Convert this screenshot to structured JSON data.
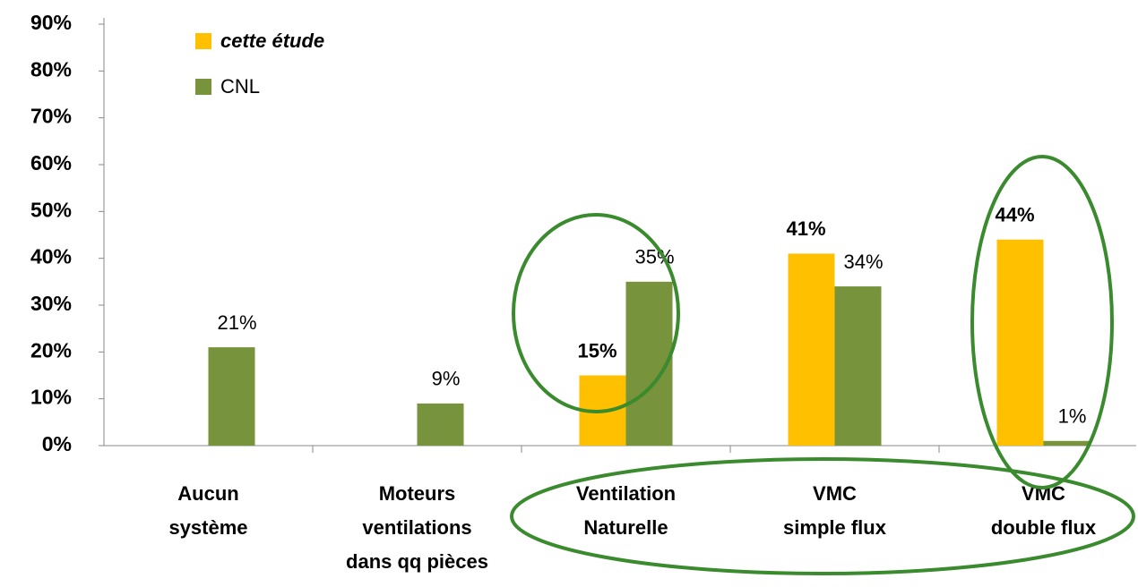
{
  "chart_data": {
    "type": "bar",
    "categories": [
      [
        "Aucun",
        "système"
      ],
      [
        "Moteurs",
        "ventilations",
        "dans qq pièces"
      ],
      [
        "Ventilation",
        "Naturelle"
      ],
      [
        "VMC",
        "simple flux"
      ],
      [
        "VMC",
        "double flux"
      ]
    ],
    "series": [
      {
        "name": "cette étude",
        "color": "#ffc000",
        "values": [
          null,
          null,
          15,
          41,
          44
        ],
        "value_labels": [
          null,
          null,
          "15%",
          "41%",
          "44%"
        ]
      },
      {
        "name": "CNL",
        "color": "#77933c",
        "values": [
          21,
          9,
          35,
          34,
          1
        ],
        "value_labels": [
          "21%",
          "9%",
          "35%",
          "34%",
          "1%"
        ]
      }
    ],
    "ylim": [
      0,
      90
    ],
    "yticks": [
      {
        "value": 0,
        "label": "0%"
      },
      {
        "value": 10,
        "label": "10%"
      },
      {
        "value": 20,
        "label": "20%"
      },
      {
        "value": 30,
        "label": "30%"
      },
      {
        "value": 40,
        "label": "40%"
      },
      {
        "value": 50,
        "label": "50%"
      },
      {
        "value": 60,
        "label": "60%"
      },
      {
        "value": 70,
        "label": "70%"
      },
      {
        "value": 80,
        "label": "80%"
      },
      {
        "value": 90,
        "label": "90%"
      }
    ],
    "grid": false
  }
}
